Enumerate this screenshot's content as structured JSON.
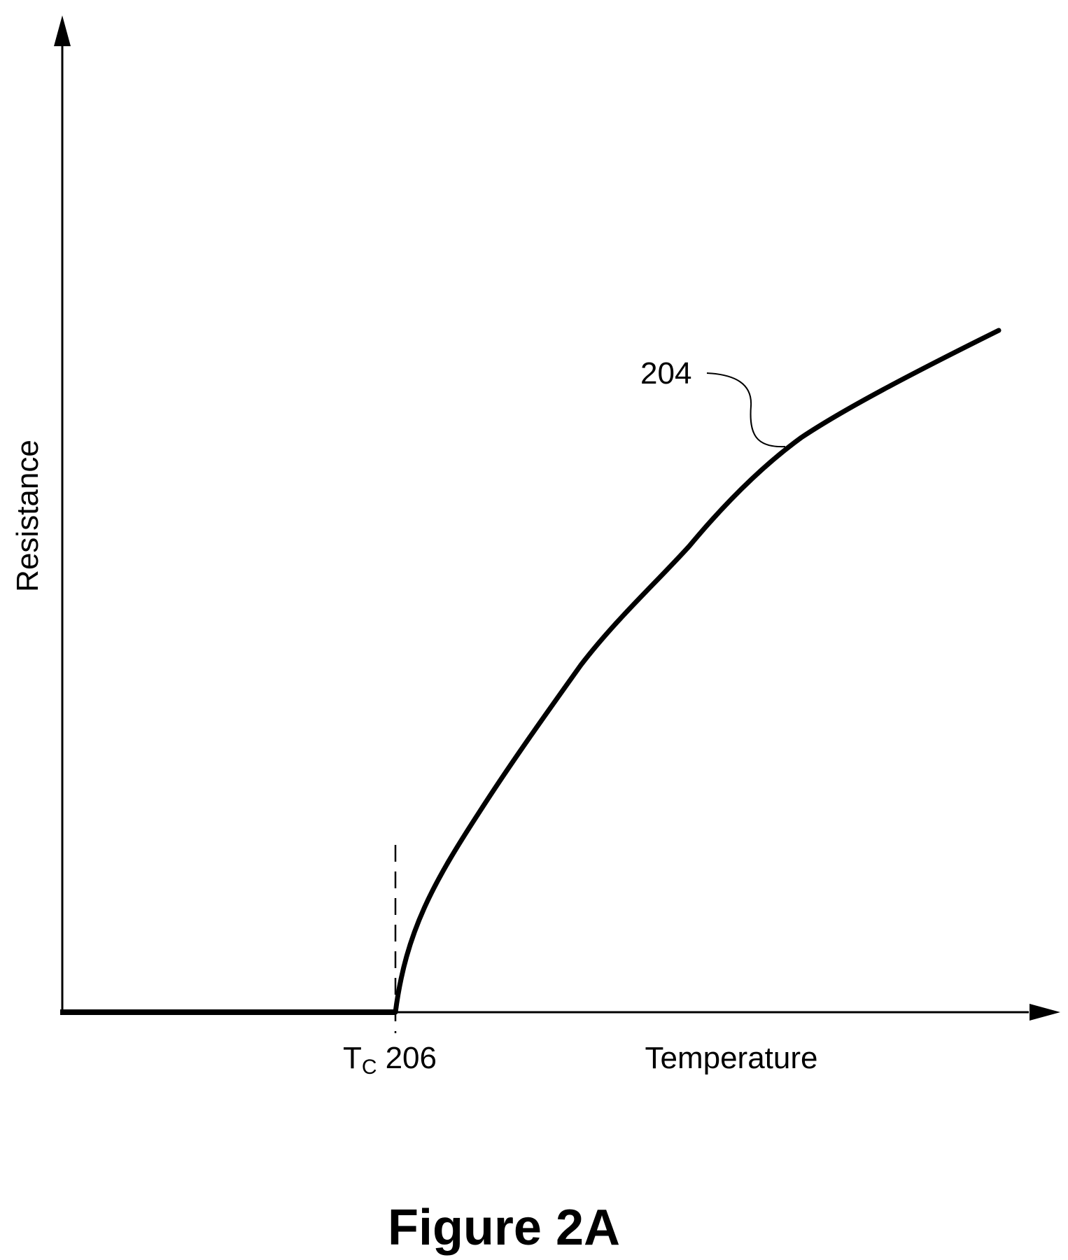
{
  "figure": {
    "caption": "Figure 2A",
    "y_axis_label": "Resistance",
    "x_axis_label": "Temperature",
    "tc_label": {
      "symbol": "T",
      "subscript": "C",
      "ref": "206"
    },
    "curve_ref": "204"
  },
  "colors": {
    "ink": "#000000",
    "background": "#ffffff"
  }
}
